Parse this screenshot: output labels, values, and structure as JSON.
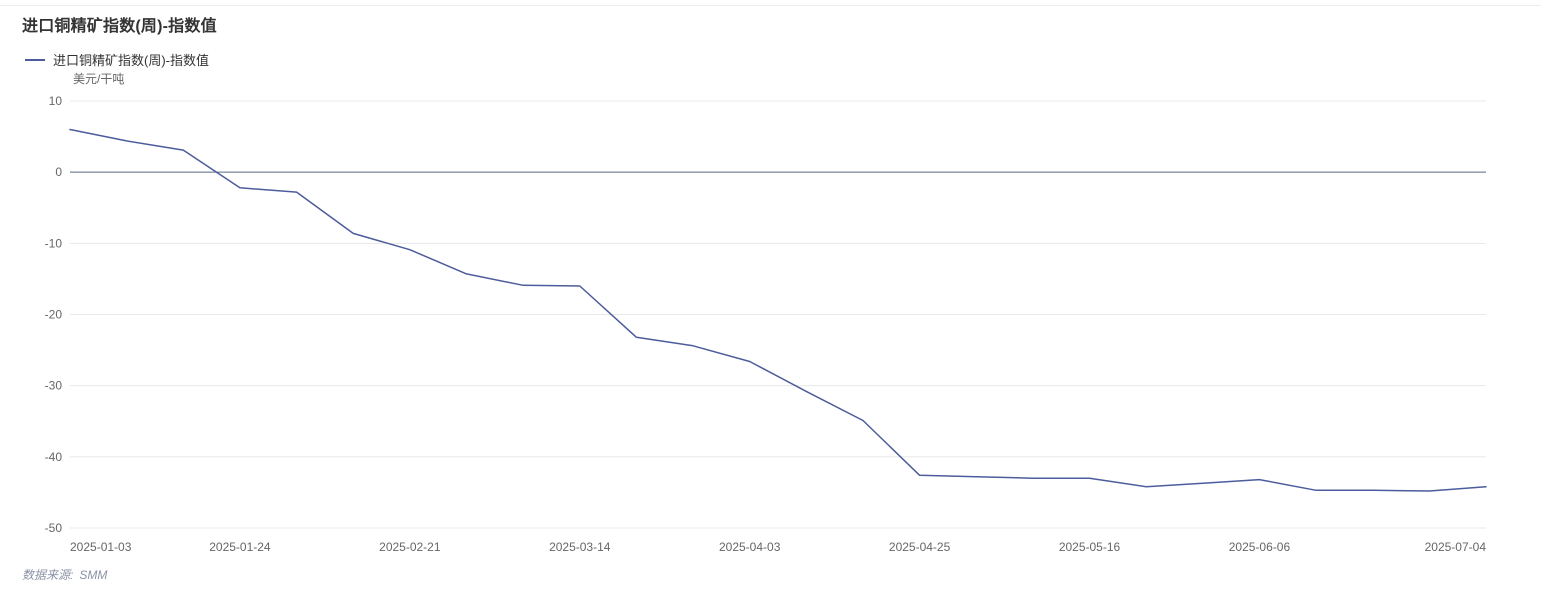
{
  "title": "进口铜精矿指数(周)-指数值",
  "legend": {
    "items": [
      {
        "label": "进口铜精矿指数(周)-指数值",
        "color": "#4c5c9c"
      }
    ]
  },
  "y_axis": {
    "unit_label": "美元/干吨",
    "tick_labels": [
      "10",
      "0",
      "-10",
      "-20",
      "-30",
      "-40",
      "-50"
    ]
  },
  "x_axis": {
    "tick_labels": [
      "2025-01-03",
      "2025-01-24",
      "2025-02-21",
      "2025-03-14",
      "2025-04-03",
      "2025-04-25",
      "2025-05-16",
      "2025-06-06",
      "2025-07-04"
    ]
  },
  "source": {
    "label": "数据来源:",
    "name": "SMM"
  },
  "colors": {
    "series": "#4c5c9c",
    "gridline": "#e8e8e8",
    "zero_line": "#5c6784",
    "axis_text": "#666666",
    "title_text": "#333333",
    "source_text": "#8a93a6"
  },
  "chart_data": {
    "type": "line",
    "title": "进口铜精矿指数(周)-指数值",
    "ylabel": "美元/干吨",
    "series": [
      {
        "name": "进口铜精矿指数(周)-指数值",
        "color": "#4c5c9c",
        "x": [
          "2025-01-03",
          "2025-01-10",
          "2025-01-17",
          "2025-01-24",
          "2025-02-07",
          "2025-02-14",
          "2025-02-21",
          "2025-02-28",
          "2025-03-07",
          "2025-03-14",
          "2025-03-21",
          "2025-03-28",
          "2025-04-03",
          "2025-04-11",
          "2025-04-18",
          "2025-04-25",
          "2025-04-30",
          "2025-05-09",
          "2025-05-16",
          "2025-05-23",
          "2025-05-30",
          "2025-06-06",
          "2025-06-13",
          "2025-06-20",
          "2025-06-27",
          "2025-07-04"
        ],
        "values": [
          6.0,
          4.4,
          3.1,
          -2.2,
          -2.8,
          -8.6,
          -10.9,
          -14.3,
          -15.9,
          -16.0,
          -23.2,
          -24.4,
          -26.6,
          -30.8,
          -34.9,
          -42.6,
          -42.8,
          -43.0,
          -43.0,
          -44.2,
          -43.7,
          -43.2,
          -44.7,
          -44.7,
          -44.8,
          -44.2
        ]
      }
    ],
    "x_tick_labels": [
      "2025-01-03",
      "2025-01-24",
      "2025-02-21",
      "2025-03-14",
      "2025-04-03",
      "2025-04-25",
      "2025-05-16",
      "2025-06-06",
      "2025-07-04"
    ],
    "x_tick_indices": [
      0,
      3,
      6,
      9,
      12,
      15,
      18,
      21,
      25
    ],
    "y_ticks": [
      10,
      0,
      -10,
      -20,
      -30,
      -40,
      -50
    ],
    "ylim": [
      -50,
      10
    ],
    "grid": true,
    "zero_line": true,
    "legend_position": "top-left",
    "source_note": "数据来源: SMM"
  }
}
